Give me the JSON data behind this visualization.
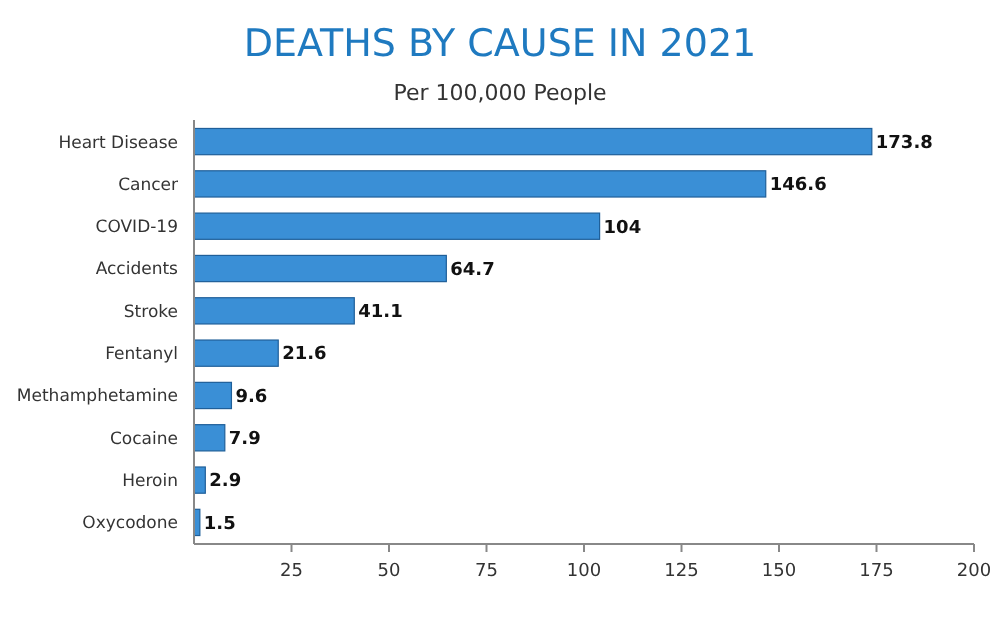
{
  "chart_data": {
    "type": "bar",
    "orientation": "horizontal",
    "title": "DEATHS BY CAUSE IN 2021",
    "subtitle": "Per 100,000 People",
    "categories": [
      "Heart Disease",
      "Cancer",
      "COVID-19",
      "Accidents",
      "Stroke",
      "Fentanyl",
      "Methamphetamine",
      "Cocaine",
      "Heroin",
      "Oxycodone"
    ],
    "values": [
      173.8,
      146.6,
      104,
      64.7,
      41.1,
      21.6,
      9.6,
      7.9,
      2.9,
      1.5
    ],
    "color": "#3a8fd6",
    "xlim": [
      0,
      200
    ],
    "xticks": [
      25,
      50,
      75,
      100,
      125,
      150,
      175,
      200
    ],
    "data_labels": true,
    "grid": false
  }
}
